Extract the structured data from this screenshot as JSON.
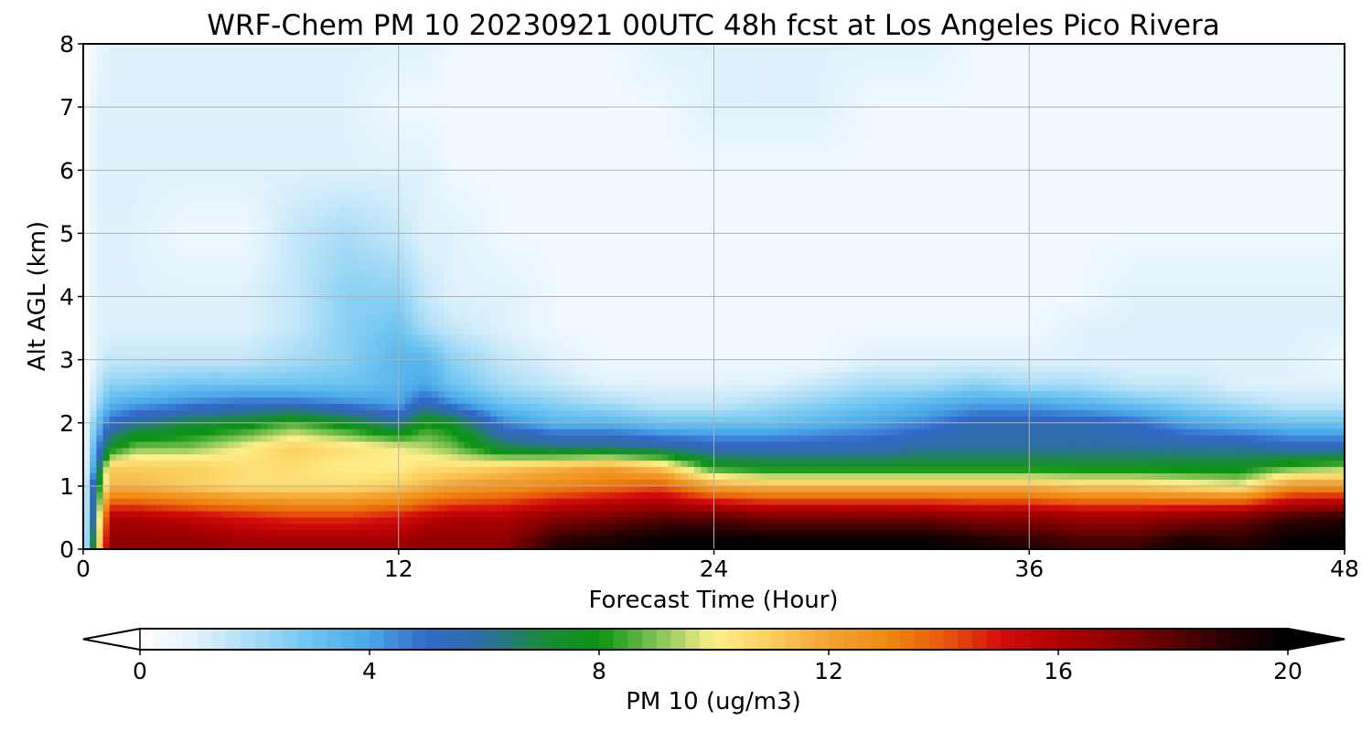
{
  "chart_data": {
    "type": "heatmap",
    "title": "WRF-Chem PM 10  20230921 00UTC 48h fcst at Los Angeles Pico Rivera",
    "xlabel": "Forecast Time (Hour)",
    "ylabel": "Alt AGL (km)",
    "xlim": [
      0,
      48
    ],
    "ylim": [
      0,
      8
    ],
    "xticks": [
      "0",
      "12",
      "24",
      "36",
      "48"
    ],
    "yticks": [
      "0",
      "1",
      "2",
      "3",
      "4",
      "5",
      "6",
      "7",
      "8"
    ],
    "grid": true,
    "colorbar": {
      "label": "PM 10  (ug/m3)",
      "range": [
        0,
        20
      ],
      "ticks": [
        "0",
        "4",
        "8",
        "12",
        "16",
        "20"
      ],
      "extend": "both",
      "orientation": "horizontal"
    },
    "x_hours": [
      0,
      0.5,
      1,
      2,
      4,
      6,
      8,
      10,
      12,
      13,
      14,
      16,
      18,
      20,
      22,
      24,
      26,
      28,
      30,
      32,
      34,
      36,
      38,
      40,
      42,
      44,
      46,
      48
    ],
    "altitudes_km": [
      0.1,
      0.5,
      1.0,
      1.3,
      1.6,
      2.0,
      2.3,
      2.6,
      3.0,
      3.5,
      4.0,
      5.0,
      6.0,
      7.0,
      8.0
    ],
    "values": [
      [
        0,
        9,
        17,
        17,
        17,
        16.5,
        16.5,
        16.5,
        16.5,
        17,
        17,
        17,
        19,
        19.5,
        20,
        20,
        20,
        20,
        20,
        20,
        19.5,
        19,
        18.5,
        18.5,
        19.5,
        19,
        20,
        20
      ],
      [
        0,
        8,
        16,
        16,
        15.5,
        15,
        14.5,
        14.5,
        15,
        15.5,
        16,
        16,
        17,
        17.5,
        18,
        18,
        17.5,
        17.5,
        17.5,
        17.5,
        17,
        17,
        16.5,
        16.5,
        17,
        17.5,
        18.5,
        19
      ],
      [
        0,
        7,
        11.5,
        11.5,
        11,
        10.5,
        10.5,
        10.5,
        11,
        11.5,
        12,
        12.5,
        13,
        13.5,
        14,
        12,
        11.5,
        11.5,
        11.5,
        11.5,
        11.5,
        11.5,
        11,
        11,
        10.5,
        10,
        12.5,
        12.5
      ],
      [
        0,
        5,
        11,
        11,
        11,
        10.5,
        10.5,
        10,
        10,
        10.5,
        10.5,
        11,
        11.5,
        12,
        11,
        8,
        7.5,
        7.5,
        7.5,
        7.5,
        7.5,
        7.5,
        7.5,
        7.5,
        7.5,
        7.5,
        8.5,
        9
      ],
      [
        0,
        4,
        7.5,
        9,
        9,
        10,
        11,
        10.5,
        10,
        9.5,
        9,
        7,
        6.5,
        6.5,
        6,
        5.5,
        5.5,
        5.5,
        5.5,
        6,
        6,
        6,
        6,
        6,
        6,
        6,
        5.5,
        5.5
      ],
      [
        0,
        3,
        5,
        6,
        7,
        7.5,
        8.5,
        7.5,
        6,
        8,
        7.5,
        4.5,
        3.5,
        3.5,
        3,
        3,
        3,
        3.5,
        4,
        4.5,
        5.5,
        5.5,
        5.5,
        5,
        4,
        3.5,
        3,
        3
      ],
      [
        0,
        2,
        3.5,
        4,
        4.5,
        5,
        5,
        4.5,
        4,
        5.5,
        4.5,
        3,
        2.5,
        2,
        1.5,
        1.5,
        2,
        2.5,
        3,
        3.5,
        4,
        4,
        3.5,
        3,
        2.5,
        2,
        1.5,
        1.5
      ],
      [
        0,
        1.5,
        2.5,
        2.5,
        3,
        3,
        3,
        3,
        3.5,
        4,
        3,
        2,
        1.5,
        1,
        1,
        1,
        1,
        1.5,
        2,
        2,
        2.5,
        2,
        2,
        1.5,
        1.5,
        1,
        1,
        1
      ],
      [
        0,
        1,
        1.5,
        1.5,
        1.5,
        1.5,
        2,
        2.5,
        3.5,
        3.5,
        2.5,
        1.5,
        1,
        0.5,
        0.5,
        0.5,
        0.5,
        0.5,
        1,
        1,
        1,
        1,
        1,
        1,
        1,
        1,
        1,
        0.5
      ],
      [
        0,
        1,
        1,
        1,
        1,
        1,
        1.5,
        2.5,
        3,
        2,
        1.5,
        1,
        0.5,
        0.5,
        0.5,
        0.5,
        0.5,
        0.5,
        0.5,
        0.5,
        0.5,
        0.5,
        1,
        1,
        1,
        1,
        1,
        1
      ],
      [
        0,
        1,
        1,
        1,
        1,
        1,
        1.5,
        2.5,
        2.5,
        1.5,
        1,
        1,
        0.5,
        0.5,
        0.5,
        0.5,
        0.5,
        0.5,
        0.5,
        0.5,
        0.5,
        0.5,
        0.5,
        1,
        1,
        1,
        1,
        1
      ],
      [
        0,
        1,
        1,
        1,
        0.5,
        0.5,
        1.5,
        2,
        1.5,
        1,
        1,
        0.5,
        0.5,
        0.5,
        0.5,
        0.5,
        0.5,
        0.5,
        0.5,
        0.5,
        0.5,
        0.5,
        0.5,
        0.5,
        0.5,
        0.5,
        0.5,
        0.5
      ],
      [
        0,
        1,
        1,
        1,
        1,
        1,
        1,
        1,
        1,
        1,
        0.5,
        0.5,
        0.5,
        0.5,
        0.5,
        0.5,
        0.5,
        0.5,
        0.5,
        0.5,
        0.5,
        0.5,
        0.5,
        0.5,
        0.5,
        0.5,
        0.5,
        0.5
      ],
      [
        0,
        1,
        1,
        1,
        1,
        1,
        1,
        1,
        0.5,
        0.5,
        0.5,
        0.5,
        0.5,
        0.5,
        0.5,
        1,
        1,
        1,
        0.5,
        0.5,
        0.5,
        0.5,
        0.5,
        0.5,
        0.5,
        0.5,
        0.5,
        0.5
      ],
      [
        0,
        0.5,
        1,
        1,
        1,
        1,
        1,
        1,
        1,
        1,
        0.5,
        0.5,
        0.5,
        0.5,
        1,
        1,
        1,
        1,
        1,
        1,
        0.5,
        0.5,
        0.5,
        0.5,
        0.5,
        0.5,
        0.5,
        0.5
      ]
    ]
  },
  "colormap": {
    "stops": [
      [
        0,
        "#ffffff"
      ],
      [
        1,
        "#dff2fc"
      ],
      [
        2,
        "#a8dcf6"
      ],
      [
        3,
        "#6cc4f1"
      ],
      [
        4,
        "#4aa7e8"
      ],
      [
        5,
        "#3368c9"
      ],
      [
        6,
        "#2d6fa2"
      ],
      [
        7,
        "#1b8a3c"
      ],
      [
        8,
        "#0a9412"
      ],
      [
        9,
        "#7fc254"
      ],
      [
        10,
        "#ffef8a"
      ],
      [
        11,
        "#fbce5c"
      ],
      [
        12,
        "#f3a235"
      ],
      [
        13,
        "#ef8a10"
      ],
      [
        14,
        "#e85a0a"
      ],
      [
        15,
        "#d40d0d"
      ],
      [
        16,
        "#b00000"
      ],
      [
        17,
        "#8c0000"
      ],
      [
        18,
        "#5a0000"
      ],
      [
        19,
        "#250000"
      ],
      [
        20,
        "#000000"
      ]
    ],
    "under": "#ffffff",
    "over": "#000000"
  }
}
